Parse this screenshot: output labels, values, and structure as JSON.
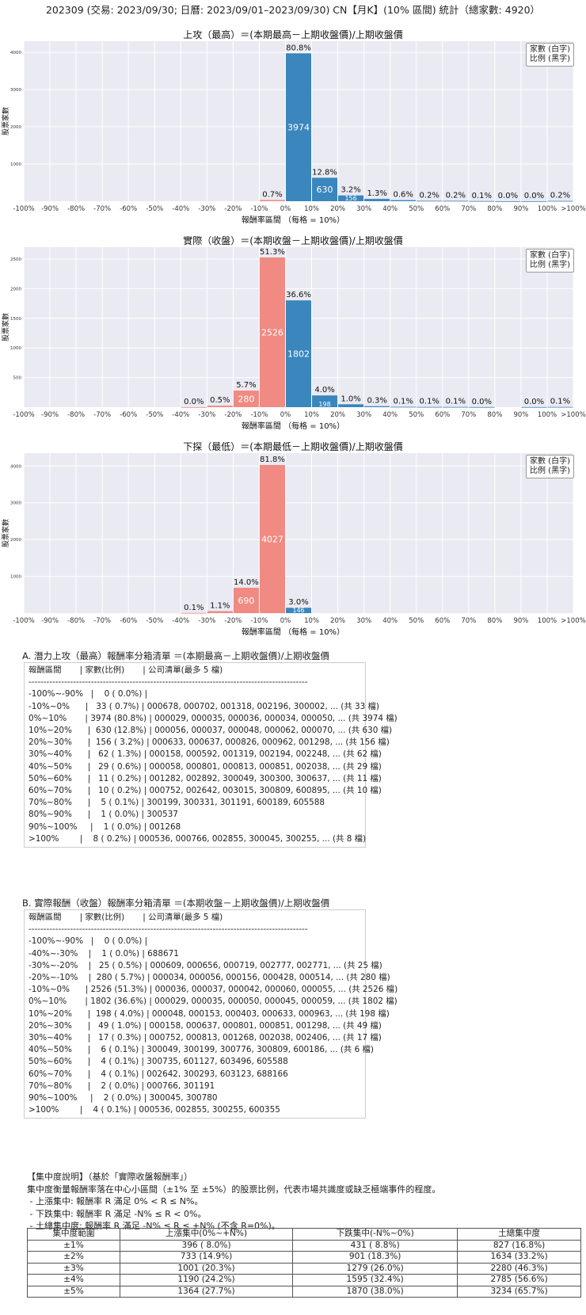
{
  "page": {
    "title": "202309 (交易: 2023/09/30; 日曆: 2023/09/01–2023/09/30) CN【月K】(10% 區間) 統計（總家數: 4920）"
  },
  "chart_data": [
    {
      "type": "bar",
      "title": "上攻（最高）＝(本期最高－上期收盤價)/上期收盤價",
      "xlabel": "報酬率區間 （每格 = 10%）",
      "ylabel": "股票家數",
      "legend": [
        "家數 (白字)",
        "比例 (黑字)"
      ],
      "legend_position": "top-right",
      "ylim": [
        0,
        4300
      ],
      "yticks": [
        1000,
        2000,
        3000,
        4000
      ],
      "xticks": [
        "-100%",
        "-90%",
        "-80%",
        "-70%",
        "-60%",
        "-50%",
        "-40%",
        "-30%",
        "-20%",
        "-10%",
        "0%",
        "10%",
        "20%",
        "30%",
        "40%",
        "50%",
        "60%",
        "70%",
        "80%",
        "90%",
        "100%",
        ">100%"
      ],
      "bars": [
        {
          "start": 9,
          "count": 33,
          "pct": "0.7%",
          "color": "#f08a82"
        },
        {
          "start": 10,
          "count": 3974,
          "pct": "80.8%",
          "color": "#3a86bd"
        },
        {
          "start": 11,
          "count": 630,
          "pct": "12.8%",
          "color": "#3a86bd"
        },
        {
          "start": 12,
          "count": 156,
          "pct": "3.2%",
          "color": "#3a86bd"
        },
        {
          "start": 13,
          "count": 62,
          "pct": "1.3%",
          "color": "#3a86bd"
        },
        {
          "start": 14,
          "count": 29,
          "pct": "0.6%",
          "color": "#3a86bd"
        },
        {
          "start": 15,
          "count": 11,
          "pct": "0.2%",
          "color": "#3a86bd"
        },
        {
          "start": 16,
          "count": 10,
          "pct": "0.2%",
          "color": "#3a86bd"
        },
        {
          "start": 17,
          "count": 5,
          "pct": "0.1%",
          "color": "#3a86bd"
        },
        {
          "start": 18,
          "count": 1,
          "pct": "0.0%",
          "color": "#3a86bd"
        },
        {
          "start": 19,
          "count": 1,
          "pct": "0.0%",
          "color": "#3a86bd"
        },
        {
          "start": 20,
          "count": 8,
          "pct": "0.2%",
          "color": "#3a86bd"
        }
      ]
    },
    {
      "type": "bar",
      "title": "實際（收盤）＝(本期收盤－上期收盤價)/上期收盤價",
      "xlabel": "報酬率區間 （每格 = 10%）",
      "ylabel": "股票家數",
      "legend": [
        "家數 (白字)",
        "比例 (黑字)"
      ],
      "legend_position": "top-right",
      "ylim": [
        0,
        2700
      ],
      "yticks": [
        500,
        1000,
        1500,
        2000,
        2500
      ],
      "xticks": [
        "-100%",
        "-90%",
        "-80%",
        "-70%",
        "-60%",
        "-50%",
        "-40%",
        "-30%",
        "-20%",
        "-10%",
        "0%",
        "10%",
        "20%",
        "30%",
        "40%",
        "50%",
        "60%",
        "70%",
        "80%",
        "90%",
        "100%",
        ">100%"
      ],
      "bars": [
        {
          "start": 6,
          "count": 1,
          "pct": "0.0%",
          "color": "#f08a82"
        },
        {
          "start": 7,
          "count": 25,
          "pct": "0.5%",
          "color": "#f08a82"
        },
        {
          "start": 8,
          "count": 280,
          "pct": "5.7%",
          "color": "#f08a82"
        },
        {
          "start": 9,
          "count": 2526,
          "pct": "51.3%",
          "color": "#f08a82"
        },
        {
          "start": 10,
          "count": 1802,
          "pct": "36.6%",
          "color": "#3a86bd"
        },
        {
          "start": 11,
          "count": 198,
          "pct": "4.0%",
          "color": "#3a86bd"
        },
        {
          "start": 12,
          "count": 49,
          "pct": "1.0%",
          "color": "#3a86bd"
        },
        {
          "start": 13,
          "count": 17,
          "pct": "0.3%",
          "color": "#3a86bd"
        },
        {
          "start": 14,
          "count": 6,
          "pct": "0.1%",
          "color": "#3a86bd"
        },
        {
          "start": 15,
          "count": 4,
          "pct": "0.1%",
          "color": "#3a86bd"
        },
        {
          "start": 16,
          "count": 4,
          "pct": "0.1%",
          "color": "#3a86bd"
        },
        {
          "start": 17,
          "count": 2,
          "pct": "0.0%",
          "color": "#3a86bd"
        },
        {
          "start": 19,
          "count": 2,
          "pct": "0.0%",
          "color": "#3a86bd"
        },
        {
          "start": 20,
          "count": 4,
          "pct": "0.1%",
          "color": "#3a86bd"
        }
      ]
    },
    {
      "type": "bar",
      "title": "下探（最低）＝(本期最低－上期收盤價)/上期收盤價",
      "xlabel": "報酬率區間 （每格 = 10%）",
      "ylabel": "股票家數",
      "legend": [
        "家數 (白字)",
        "比例 (黑字)"
      ],
      "legend_position": "top-right",
      "ylim": [
        0,
        4350
      ],
      "yticks": [
        1000,
        2000,
        3000,
        4000
      ],
      "xticks": [
        "-100%",
        "-90%",
        "-80%",
        "-70%",
        "-60%",
        "-50%",
        "-40%",
        "-30%",
        "-20%",
        "-10%",
        "0%",
        "10%",
        "20%",
        "30%",
        "40%",
        "50%",
        "60%",
        "70%",
        "80%",
        "90%",
        "100%",
        ">100%"
      ],
      "bars": [
        {
          "start": 6,
          "count": 5,
          "pct": "0.1%",
          "color": "#f08a82"
        },
        {
          "start": 7,
          "count": 54,
          "pct": "1.1%",
          "color": "#f08a82"
        },
        {
          "start": 8,
          "count": 690,
          "pct": "14.0%",
          "color": "#f08a82"
        },
        {
          "start": 9,
          "count": 4027,
          "pct": "81.8%",
          "color": "#f08a82"
        },
        {
          "start": 10,
          "count": 146,
          "pct": "3.0%",
          "color": "#3a86bd"
        }
      ]
    }
  ],
  "listingA": {
    "title": "A. 潛力上攻（最高）報酬率分箱清單 ＝(本期最高－上期收盤價)/上期收盤價",
    "rows": [
      "報酬區間       | 家數(比例)       | 公司清單(最多 5 檔)",
      "----------------------------------------------------------------------------------------------",
      "-100%~-90%   |    0 ( 0.0%) |",
      "-10%~0%      |   33 ( 0.7%) | 000678, 000702, 001318, 002196, 300002, ... (共 33 檔)",
      "0%~10%       | 3974 (80.8%) | 000029, 000035, 000036, 000034, 000050, ... (共 3974 檔)",
      "10%~20%      |  630 (12.8%) | 000056, 000037, 000048, 000062, 000070, ... (共 630 檔)",
      "20%~30%      |  156 ( 3.2%) | 000633, 000637, 000826, 000962, 001298, ... (共 156 檔)",
      "30%~40%      |   62 ( 1.3%) | 000158, 000592, 001319, 002194, 002248, ... (共 62 檔)",
      "40%~50%      |   29 ( 0.6%) | 000058, 000801, 000813, 000851, 002038, ... (共 29 檔)",
      "50%~60%      |   11 ( 0.2%) | 001282, 002892, 300049, 300300, 300637, ... (共 11 檔)",
      "60%~70%      |   10 ( 0.2%) | 000752, 002642, 003015, 300809, 600895, ... (共 10 檔)",
      "70%~80%      |    5 ( 0.1%) | 300199, 300331, 301191, 600189, 605588",
      "80%~90%      |    1 ( 0.0%) | 300537",
      "90%~100%     |    1 ( 0.0%) | 001268",
      ">100%        |    8 ( 0.2%) | 000536, 000766, 002855, 300045, 300255, ... (共 8 檔)"
    ]
  },
  "listingB": {
    "title": "B. 實際報酬（收盤）報酬率分箱清單 ＝(本期收盤－上期收盤價)/上期收盤價",
    "rows": [
      "報酬區間       | 家數(比例)       | 公司清單(最多 5 檔)",
      "----------------------------------------------------------------------------------------------",
      "-100%~-90%   |    0 ( 0.0%) |",
      "-40%~-30%    |    1 ( 0.0%) | 688671",
      "-30%~-20%    |   25 ( 0.5%) | 000609, 000656, 000719, 002777, 002771, ... (共 25 檔)",
      "-20%~-10%    |  280 ( 5.7%) | 000034, 000056, 000156, 000428, 000514, ... (共 280 檔)",
      "-10%~0%      | 2526 (51.3%) | 000036, 000037, 000042, 000060, 000055, ... (共 2526 檔)",
      "0%~10%       | 1802 (36.6%) | 000029, 000035, 000050, 000045, 000059, ... (共 1802 檔)",
      "10%~20%      |  198 ( 4.0%) | 000048, 000153, 000403, 000633, 000963, ... (共 198 檔)",
      "20%~30%      |   49 ( 1.0%) | 000158, 000637, 000801, 000851, 001298, ... (共 49 檔)",
      "30%~40%      |   17 ( 0.3%) | 000752, 000813, 001268, 002038, 002406, ... (共 17 檔)",
      "40%~50%      |    6 ( 0.1%) | 300049, 300199, 300776, 300809, 600186, ... (共 6 檔)",
      "50%~60%      |    4 ( 0.1%) | 300735, 601127, 603496, 605588",
      "60%~70%      |    4 ( 0.1%) | 002642, 300293, 603123, 688166",
      "70%~80%      |    2 ( 0.0%) | 000766, 301191",
      "90%~100%     |    2 ( 0.0%) | 300045, 300780",
      ">100%        |    4 ( 0.1%) | 000536, 002855, 300255, 600355"
    ]
  },
  "concentration": {
    "title": "【集中度說明】（基於「實際收盤報酬率」）",
    "lines": [
      "集中度衡量報酬率落在中心小區間（±1% 至 ±5%）的股票比例，代表市場共識度或缺乏極端事件的程度。",
      " - 上漲集中: 報酬率 R 滿足 0% < R ≤ N%。",
      " - 下跌集中: 報酬率 R 滿足 -N% ≤ R < 0%。",
      " - 土總集中度: 報酬率 R 滿足 -N% ≤ R ≤ +N% (不含 R=0%)。"
    ],
    "headers": [
      "集中度範圍",
      "上漲集中(0%~+N%)",
      "下跌集中(-N%~0%)",
      "土總集中度"
    ],
    "rows": [
      [
        "±1%",
        "396 ( 8.0%)",
        "431 ( 8.8%)",
        "827 (16.8%)"
      ],
      [
        "±2%",
        "733 (14.9%)",
        "901 (18.3%)",
        "1634 (33.2%)"
      ],
      [
        "±3%",
        "1001 (20.3%)",
        "1279 (26.0%)",
        "2280 (46.3%)"
      ],
      [
        "±4%",
        "1190 (24.2%)",
        "1595 (32.4%)",
        "2785 (56.6%)"
      ],
      [
        "±5%",
        "1364 (27.7%)",
        "1870 (38.0%)",
        "3234 (65.7%)"
      ]
    ]
  }
}
